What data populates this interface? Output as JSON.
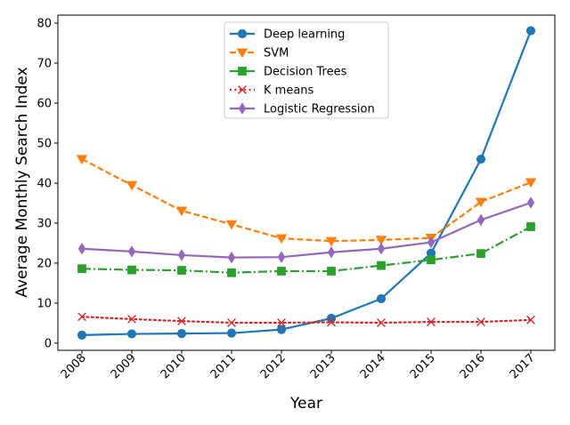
{
  "chart_data": {
    "type": "line",
    "title": "",
    "xlabel": "Year",
    "ylabel": "Average Monthly Search Index",
    "x": [
      "2008",
      "2009",
      "2010",
      "2011",
      "2012",
      "2013",
      "2014",
      "2015",
      "2016",
      "2017"
    ],
    "ylim": [
      -1.8,
      82
    ],
    "yticks": [
      0,
      10,
      20,
      30,
      40,
      50,
      60,
      70,
      80
    ],
    "grid": false,
    "legend_position": "top-center",
    "series": [
      {
        "name": "Deep learning",
        "color": "#1f77b4",
        "line_style": "solid",
        "marker": "circle",
        "values": [
          2.0,
          2.3,
          2.4,
          2.5,
          3.4,
          6.2,
          11.1,
          22.5,
          46.0,
          78.1
        ]
      },
      {
        "name": "SVM",
        "color": "#ff7f0e",
        "line_style": "dashed",
        "marker": "triangle-down",
        "values": [
          46.0,
          39.5,
          33.1,
          29.7,
          26.2,
          25.5,
          25.8,
          26.3,
          35.3,
          40.2
        ]
      },
      {
        "name": "Decision Trees",
        "color": "#2ca02c",
        "line_style": "dashdot",
        "marker": "square",
        "values": [
          18.6,
          18.3,
          18.2,
          17.6,
          18.0,
          18.0,
          19.4,
          20.8,
          22.4,
          29.1
        ]
      },
      {
        "name": "K means",
        "color": "#d62728",
        "line_style": "dotted",
        "marker": "x",
        "values": [
          6.6,
          6.0,
          5.5,
          5.1,
          5.1,
          5.2,
          5.1,
          5.3,
          5.3,
          5.8
        ]
      },
      {
        "name": "Logistic Regression",
        "color": "#9467bd",
        "line_style": "solid",
        "marker": "thin-diamond",
        "values": [
          23.6,
          22.9,
          22.0,
          21.4,
          21.5,
          22.7,
          23.6,
          25.2,
          30.8,
          35.1
        ]
      }
    ]
  }
}
